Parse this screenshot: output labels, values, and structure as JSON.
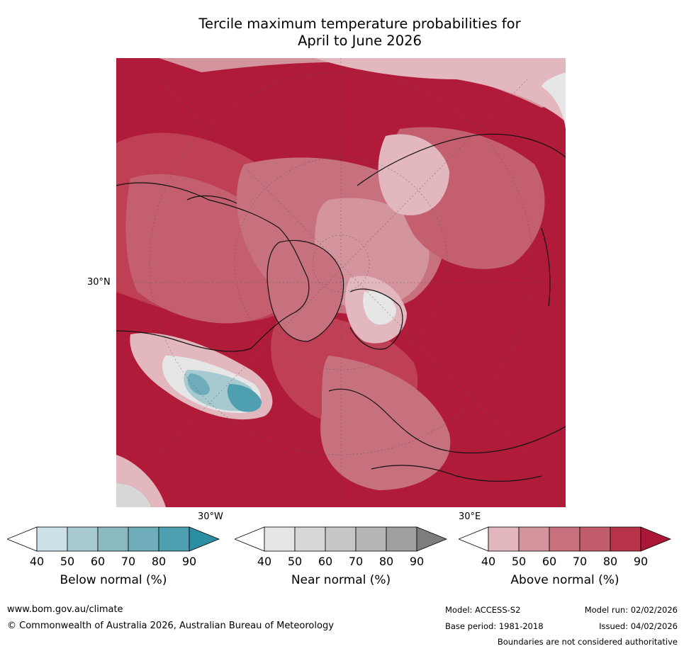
{
  "title": {
    "line1": "Tercile maximum temperature probabilities for",
    "line2": "April to June 2026"
  },
  "map": {
    "projection": "North polar stereographic",
    "lat_label": "30°N",
    "lon_labels": [
      "30°W",
      "30°E"
    ]
  },
  "colorbars": [
    {
      "label": "Below normal (%)",
      "ticks": [
        "40",
        "50",
        "60",
        "70",
        "80",
        "90"
      ],
      "colors": [
        "#ffffff",
        "#cbe1e7",
        "#a7c9d0",
        "#8ab9c1",
        "#6eadb9",
        "#4ea0b0",
        "#2c8ea3"
      ]
    },
    {
      "label": "Near normal (%)",
      "ticks": [
        "40",
        "50",
        "60",
        "70",
        "80",
        "90"
      ],
      "colors": [
        "#ffffff",
        "#e6e6e6",
        "#d7d7d7",
        "#c7c7c7",
        "#b5b5b5",
        "#a0a0a0",
        "#7d7d7d"
      ]
    },
    {
      "label": "Above normal (%)",
      "ticks": [
        "40",
        "50",
        "60",
        "70",
        "80",
        "90"
      ],
      "colors": [
        "#ffffff",
        "#e2b7bd",
        "#d3949e",
        "#c7717f",
        "#c05c6c",
        "#b73448",
        "#ac1637"
      ]
    }
  ],
  "footer": {
    "website": "www.bom.gov.au/climate",
    "copyright": "© Commonwealth of Australia 2026, Australian Bureau of Meteorology",
    "model": "Model: ACCESS-S2",
    "base_period": "Base period: 1981-2018",
    "model_run": "Model run: 02/02/2026",
    "issued": "Issued: 04/02/2026",
    "disclaimer": "Boundaries are not considered authoritative"
  }
}
